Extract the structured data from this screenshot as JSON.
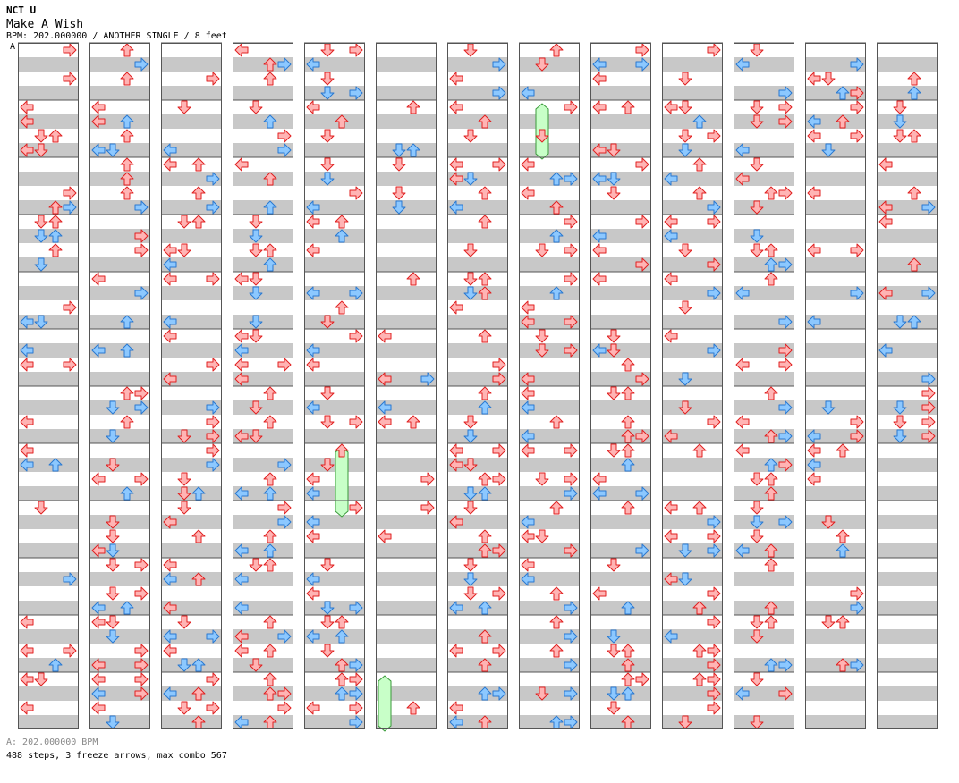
{
  "header": {
    "artist": "NCT U",
    "title": "Make A Wish",
    "info": "BPM: 202.000000 / ANOTHER SINGLE / 8 feet"
  },
  "segment_label": "A",
  "footer": {
    "bpm_text": "A: 202.000000 BPM",
    "stats_text": "488 steps, 3 freeze arrows, max combo 567"
  },
  "colors": {
    "arrow_red_fill": "#ffb4b4",
    "arrow_red_stroke": "#e02020",
    "arrow_blue_fill": "#8cc8ff",
    "arrow_blue_stroke": "#2a78d0",
    "freeze_fill": "#c8ffc8",
    "freeze_stroke": "#3a9a3a",
    "stripe": "#c8c8c8",
    "grid": "#555555"
  },
  "chart": {
    "type": "step-chart",
    "columns": 13,
    "rows_per_column": 12,
    "lanes": [
      "left",
      "down",
      "up",
      "right"
    ],
    "freeze_arrows": [
      {
        "column": 7,
        "lane": "down",
        "from_row": 1.0,
        "to_row": 2.0
      },
      {
        "column": 4,
        "lane": "up",
        "from_row": 7.0,
        "to_row": 8.25
      },
      {
        "column": 5,
        "lane": "left",
        "from_row": 11.0,
        "to_row": 12.0
      }
    ]
  }
}
